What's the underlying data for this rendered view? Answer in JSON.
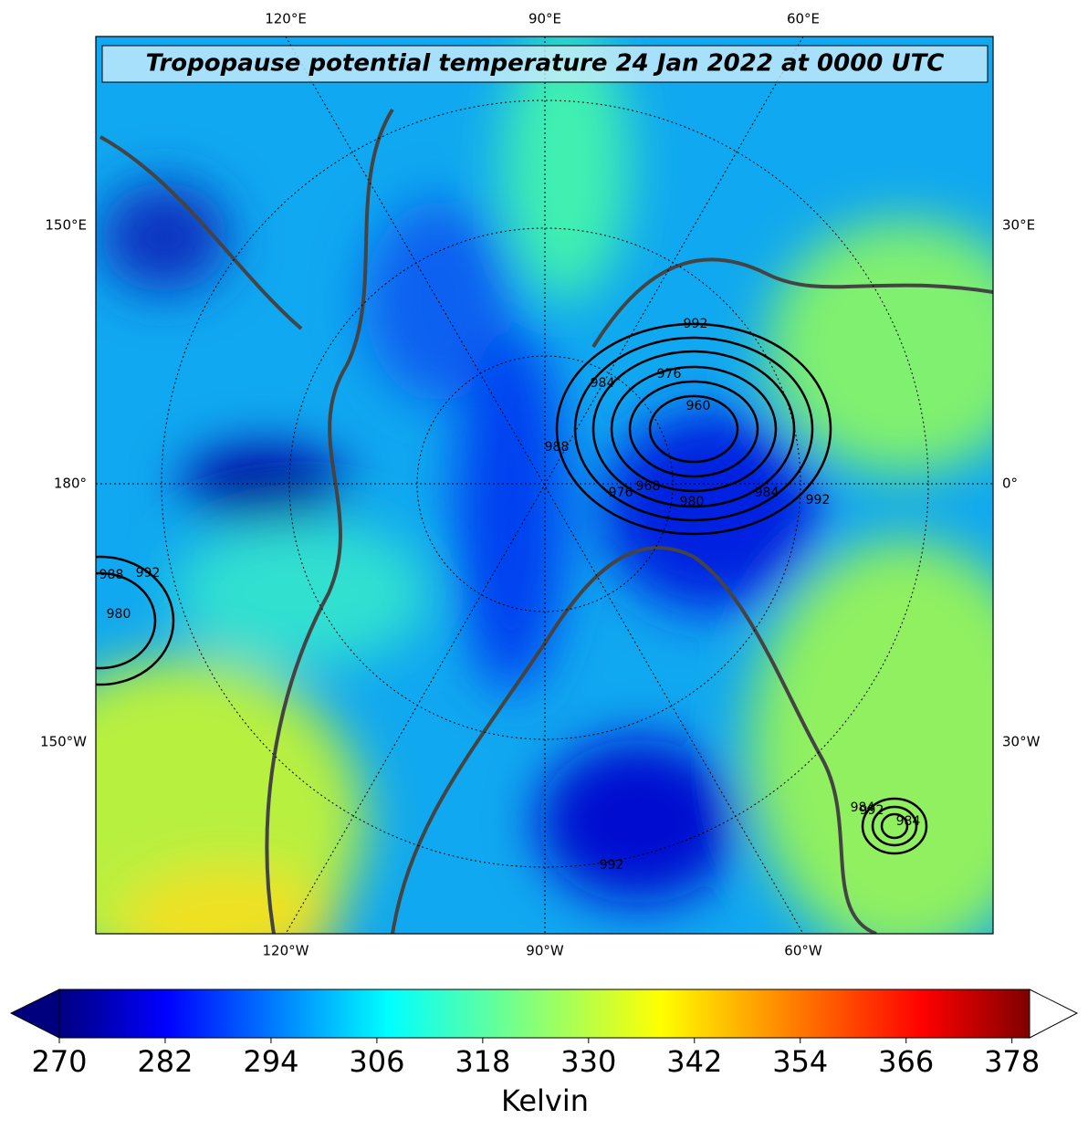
{
  "title": "Tropopause potential temperature 24 Jan 2022 at 0000 UTC",
  "map": {
    "top_labels": [
      "120°E",
      "90°E",
      "60°E"
    ],
    "bottom_labels": [
      "120°W",
      "90°W",
      "60°W"
    ],
    "left_labels": [
      "150°E",
      "180°",
      "150°W"
    ],
    "right_labels": [
      "30°E",
      "0°",
      "30°W"
    ],
    "contour_labels": [
      "992",
      "976",
      "984",
      "960",
      "968",
      "976",
      "980",
      "984",
      "992",
      "988",
      "988",
      "992",
      "980",
      "984",
      "992",
      "984",
      "992"
    ]
  },
  "colorbar": {
    "label": "Kelvin",
    "range": [
      270,
      380
    ],
    "ticks": [
      270,
      282,
      294,
      306,
      318,
      330,
      342,
      354,
      366,
      378
    ]
  }
}
